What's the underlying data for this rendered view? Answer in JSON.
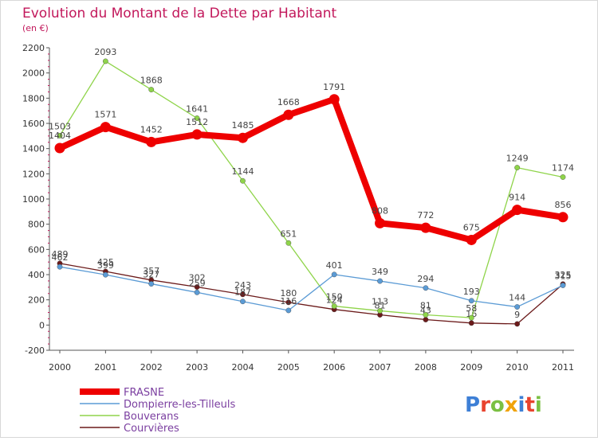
{
  "chart_data": {
    "type": "line",
    "title": "Evolution du Montant de la Dette par Habitant",
    "subtitle": "(en €)",
    "x": [
      "2000",
      "2001",
      "2002",
      "2003",
      "2004",
      "2005",
      "2006",
      "2007",
      "2008",
      "2009",
      "2010",
      "2011"
    ],
    "ylim": [
      -200,
      2200
    ],
    "yticks": [
      -200,
      0,
      200,
      400,
      600,
      800,
      1000,
      1200,
      1400,
      1600,
      1800,
      2000,
      2200
    ],
    "grid": false,
    "legend_position": "bottom-left",
    "series": [
      {
        "name": "Courvières",
        "color": "#6b1a1a",
        "values": [
          489,
          425,
          357,
          302,
          243,
          180,
          124,
          81,
          43,
          16,
          9,
          325
        ]
      },
      {
        "name": "Bouverans",
        "color": "#8fd44a",
        "values": [
          1503,
          2093,
          1868,
          1641,
          1144,
          651,
          150,
          113,
          81,
          58,
          1249,
          1174
        ]
      },
      {
        "name": "Dompierre-les-Tilleuls",
        "color": "#5b9bd5",
        "values": [
          462,
          399,
          327,
          259,
          187,
          116,
          401,
          349,
          294,
          193,
          144,
          315
        ]
      },
      {
        "name": "FRASNE",
        "color": "#ee0000",
        "values": [
          1404,
          1571,
          1452,
          1512,
          1485,
          1668,
          1791,
          808,
          772,
          675,
          914,
          856
        ]
      }
    ]
  },
  "brand": {
    "letters": [
      "P",
      "r",
      "o",
      "x",
      "i",
      "t",
      "i"
    ],
    "colors": [
      "#3d7fd6",
      "#e8432e",
      "#7bc043",
      "#f0a30a",
      "#3d7fd6",
      "#e8432e",
      "#7bc043"
    ]
  }
}
